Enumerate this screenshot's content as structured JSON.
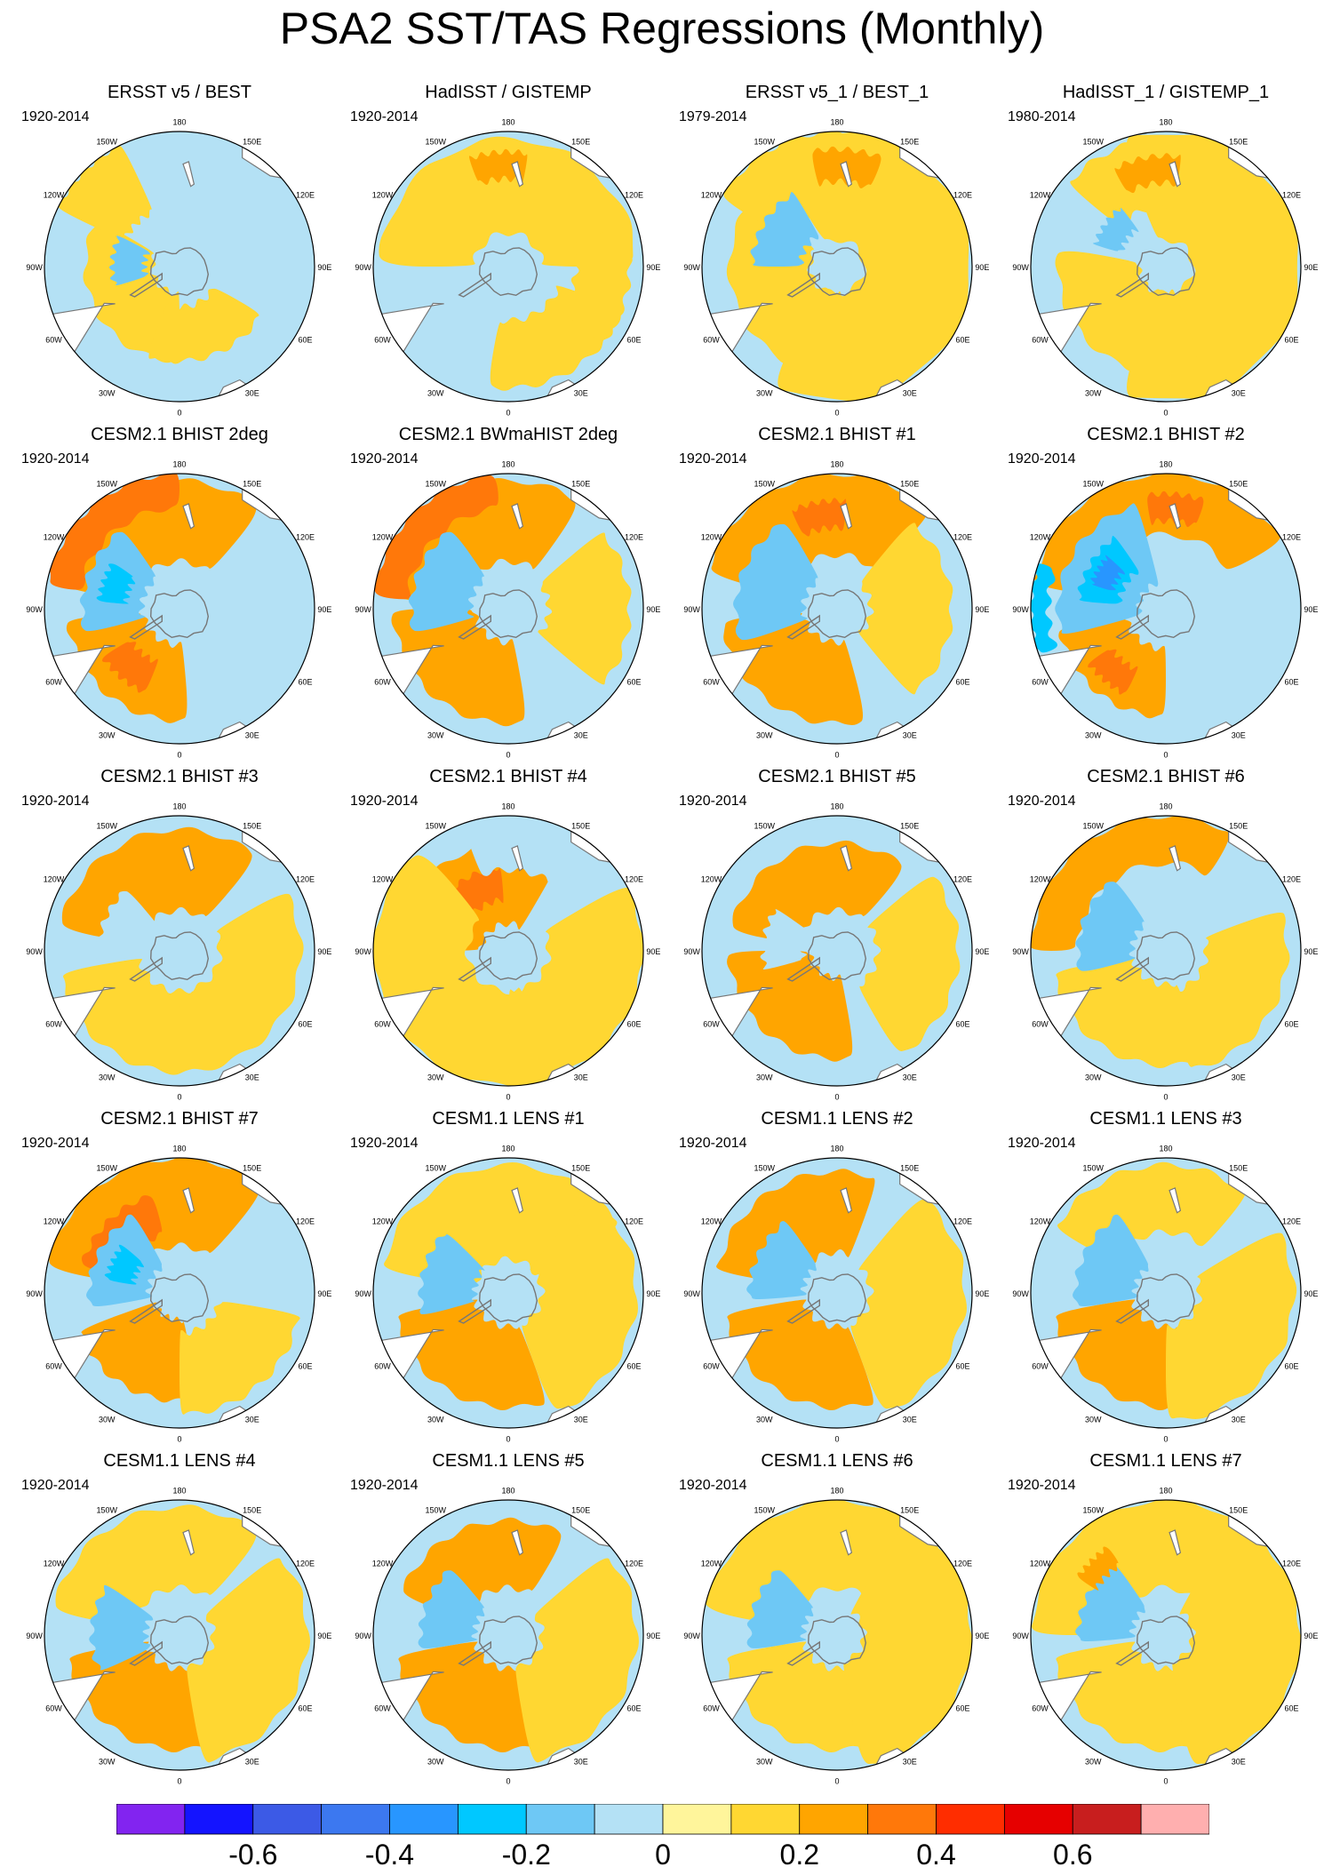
{
  "chart_data": {
    "type": "polar-contour-map-grid",
    "title": "PSA2 SST/TAS Regressions (Monthly)",
    "projection": "south-polar-stereographic",
    "lon_labels": [
      "0",
      "30E",
      "60E",
      "90E",
      "120E",
      "150E",
      "180",
      "150W",
      "120W",
      "90W",
      "60W",
      "30W"
    ],
    "panels": [
      {
        "title": "ERSST v5 / BEST",
        "period": "1920-2014",
        "blobs": [
          {
            "lon": 300,
            "r": 0.45,
            "w": 60,
            "d": 0.25,
            "level": 0.1
          },
          {
            "lon": 20,
            "r": 0.5,
            "w": 40,
            "d": 0.2,
            "level": 0.1
          },
          {
            "lon": 225,
            "r": 0.75,
            "w": 20,
            "d": 0.3,
            "level": 0.1
          },
          {
            "lon": 265,
            "r": 0.38,
            "w": 22,
            "d": 0.12,
            "level": -0.2
          }
        ]
      },
      {
        "title": "HadISST / GISTEMP",
        "period": "1920-2014",
        "blobs": [
          {
            "lon": 180,
            "r": 0.6,
            "w": 90,
            "d": 0.35,
            "level": 0.1
          },
          {
            "lon": 30,
            "r": 0.65,
            "w": 40,
            "d": 0.25,
            "level": 0.1
          },
          {
            "lon": 80,
            "r": 0.7,
            "w": 30,
            "d": 0.2,
            "level": 0.1
          },
          {
            "lon": 185,
            "r": 0.75,
            "w": 15,
            "d": 0.1,
            "level": 0.2
          }
        ]
      },
      {
        "title": "ERSST v5_1 / BEST_1",
        "period": "1979-2014",
        "blobs": [
          {
            "lon": 90,
            "r": 0.6,
            "w": 120,
            "d": 0.4,
            "level": 0.1
          },
          {
            "lon": 300,
            "r": 0.5,
            "w": 70,
            "d": 0.3,
            "level": 0.1
          },
          {
            "lon": 200,
            "r": 0.7,
            "w": 40,
            "d": 0.3,
            "level": 0.1
          },
          {
            "lon": 240,
            "r": 0.45,
            "w": 30,
            "d": 0.18,
            "level": -0.2
          },
          {
            "lon": 175,
            "r": 0.75,
            "w": 18,
            "d": 0.12,
            "level": 0.2
          }
        ]
      },
      {
        "title": "HadISST_1 / GISTEMP_1",
        "period": "1980-2014",
        "blobs": [
          {
            "lon": 90,
            "r": 0.6,
            "w": 110,
            "d": 0.4,
            "level": 0.1
          },
          {
            "lon": 320,
            "r": 0.5,
            "w": 60,
            "d": 0.3,
            "level": 0.1
          },
          {
            "lon": 190,
            "r": 0.7,
            "w": 40,
            "d": 0.25,
            "level": 0.1
          },
          {
            "lon": 190,
            "r": 0.72,
            "w": 18,
            "d": 0.1,
            "level": 0.2
          },
          {
            "lon": 235,
            "r": 0.45,
            "w": 18,
            "d": 0.1,
            "level": -0.2
          }
        ]
      },
      {
        "title": "CESM2.1 BHIST 2deg",
        "period": "1920-2014",
        "blobs": [
          {
            "lon": 320,
            "r": 0.55,
            "w": 45,
            "d": 0.28,
            "level": 0.2
          },
          {
            "lon": 320,
            "r": 0.55,
            "w": 18,
            "d": 0.12,
            "level": 0.3
          },
          {
            "lon": 200,
            "r": 0.65,
            "w": 60,
            "d": 0.3,
            "level": 0.2
          },
          {
            "lon": 220,
            "r": 0.9,
            "w": 40,
            "d": 0.15,
            "level": 0.3
          },
          {
            "lon": 250,
            "r": 0.5,
            "w": 35,
            "d": 0.22,
            "level": -0.2
          },
          {
            "lon": 250,
            "r": 0.5,
            "w": 15,
            "d": 0.1,
            "level": -0.3
          }
        ]
      },
      {
        "title": "CESM2.1 BWmaHIST 2deg",
        "period": "1920-2014",
        "blobs": [
          {
            "lon": 320,
            "r": 0.55,
            "w": 50,
            "d": 0.3,
            "level": 0.2
          },
          {
            "lon": 205,
            "r": 0.65,
            "w": 60,
            "d": 0.3,
            "level": 0.2
          },
          {
            "lon": 225,
            "r": 0.9,
            "w": 40,
            "d": 0.15,
            "level": 0.3
          },
          {
            "lon": 250,
            "r": 0.5,
            "w": 35,
            "d": 0.22,
            "level": -0.2
          },
          {
            "lon": 90,
            "r": 0.6,
            "w": 40,
            "d": 0.3,
            "level": 0.1
          }
        ]
      },
      {
        "title": "CESM2.1 BHIST #1",
        "period": "1920-2014",
        "blobs": [
          {
            "lon": 325,
            "r": 0.55,
            "w": 50,
            "d": 0.3,
            "level": 0.2
          },
          {
            "lon": 195,
            "r": 0.7,
            "w": 60,
            "d": 0.3,
            "level": 0.2
          },
          {
            "lon": 190,
            "r": 0.7,
            "w": 15,
            "d": 0.1,
            "level": 0.3
          },
          {
            "lon": 250,
            "r": 0.5,
            "w": 40,
            "d": 0.25,
            "level": -0.2
          },
          {
            "lon": 90,
            "r": 0.55,
            "w": 50,
            "d": 0.3,
            "level": 0.1
          }
        ]
      },
      {
        "title": "CESM2.1 BHIST #2",
        "period": "1920-2014",
        "blobs": [
          {
            "lon": 320,
            "r": 0.55,
            "w": 40,
            "d": 0.25,
            "level": 0.2
          },
          {
            "lon": 320,
            "r": 0.6,
            "w": 15,
            "d": 0.1,
            "level": 0.3
          },
          {
            "lon": 190,
            "r": 0.8,
            "w": 70,
            "d": 0.25,
            "level": 0.2
          },
          {
            "lon": 175,
            "r": 0.75,
            "w": 15,
            "d": 0.1,
            "level": 0.3
          },
          {
            "lon": 240,
            "r": 0.5,
            "w": 45,
            "d": 0.3,
            "level": -0.2
          },
          {
            "lon": 240,
            "r": 0.5,
            "w": 25,
            "d": 0.15,
            "level": -0.3
          },
          {
            "lon": 240,
            "r": 0.5,
            "w": 12,
            "d": 0.08,
            "level": -0.4
          },
          {
            "lon": 270,
            "r": 0.95,
            "w": 20,
            "d": 0.08,
            "level": -0.3
          }
        ]
      },
      {
        "title": "CESM2.1 BHIST #3",
        "period": "1920-2014",
        "blobs": [
          {
            "lon": 330,
            "r": 0.6,
            "w": 50,
            "d": 0.3,
            "level": 0.1
          },
          {
            "lon": 200,
            "r": 0.6,
            "w": 60,
            "d": 0.3,
            "level": 0.2
          },
          {
            "lon": 60,
            "r": 0.6,
            "w": 60,
            "d": 0.3,
            "level": 0.1
          },
          {
            "lon": 250,
            "r": 0.4,
            "w": 30,
            "d": 0.2,
            "level": -0.1
          }
        ]
      },
      {
        "title": "CESM2.1 BHIST #4",
        "period": "1920-2014",
        "blobs": [
          {
            "lon": 210,
            "r": 0.5,
            "w": 60,
            "d": 0.3,
            "level": 0.2
          },
          {
            "lon": 210,
            "r": 0.5,
            "w": 25,
            "d": 0.12,
            "level": 0.3
          },
          {
            "lon": 300,
            "r": 0.7,
            "w": 80,
            "d": 0.4,
            "level": 0.1
          },
          {
            "lon": 60,
            "r": 0.7,
            "w": 60,
            "d": 0.4,
            "level": 0.1
          },
          {
            "lon": 170,
            "r": 0.8,
            "w": 30,
            "d": 0.2,
            "level": -0.1
          }
        ]
      },
      {
        "title": "CESM2.1 BHIST #5",
        "period": "1920-2014",
        "blobs": [
          {
            "lon": 320,
            "r": 0.5,
            "w": 50,
            "d": 0.3,
            "level": 0.2
          },
          {
            "lon": 200,
            "r": 0.55,
            "w": 60,
            "d": 0.25,
            "level": 0.2
          },
          {
            "lon": 80,
            "r": 0.6,
            "w": 50,
            "d": 0.3,
            "level": 0.1
          },
          {
            "lon": 260,
            "r": 0.4,
            "w": 25,
            "d": 0.15,
            "level": -0.1
          }
        ]
      },
      {
        "title": "CESM2.1 BHIST #6",
        "period": "1920-2014",
        "blobs": [
          {
            "lon": 330,
            "r": 0.55,
            "w": 50,
            "d": 0.3,
            "level": 0.1
          },
          {
            "lon": 210,
            "r": 0.85,
            "w": 60,
            "d": 0.2,
            "level": 0.2
          },
          {
            "lon": 60,
            "r": 0.6,
            "w": 50,
            "d": 0.3,
            "level": 0.1
          },
          {
            "lon": 250,
            "r": 0.45,
            "w": 35,
            "d": 0.2,
            "level": -0.2
          }
        ]
      },
      {
        "title": "CESM2.1 BHIST #7",
        "period": "1920-2014",
        "blobs": [
          {
            "lon": 330,
            "r": 0.5,
            "w": 40,
            "d": 0.3,
            "level": 0.2
          },
          {
            "lon": 200,
            "r": 0.7,
            "w": 60,
            "d": 0.35,
            "level": 0.2
          },
          {
            "lon": 225,
            "r": 0.6,
            "w": 30,
            "d": 0.15,
            "level": 0.3
          },
          {
            "lon": 245,
            "r": 0.45,
            "w": 35,
            "d": 0.22,
            "level": -0.2
          },
          {
            "lon": 245,
            "r": 0.45,
            "w": 15,
            "d": 0.1,
            "level": -0.3
          },
          {
            "lon": 40,
            "r": 0.6,
            "w": 40,
            "d": 0.3,
            "level": 0.1
          }
        ]
      },
      {
        "title": "CESM1.1 LENS #1",
        "period": "1920-2014",
        "blobs": [
          {
            "lon": 330,
            "r": 0.55,
            "w": 50,
            "d": 0.3,
            "level": 0.2
          },
          {
            "lon": 190,
            "r": 0.6,
            "w": 70,
            "d": 0.35,
            "level": 0.1
          },
          {
            "lon": 80,
            "r": 0.6,
            "w": 60,
            "d": 0.35,
            "level": 0.1
          },
          {
            "lon": 255,
            "r": 0.45,
            "w": 30,
            "d": 0.2,
            "level": -0.2
          }
        ]
      },
      {
        "title": "CESM1.1 LENS #2",
        "period": "1920-2014",
        "blobs": [
          {
            "lon": 330,
            "r": 0.55,
            "w": 50,
            "d": 0.3,
            "level": 0.2
          },
          {
            "lon": 210,
            "r": 0.6,
            "w": 50,
            "d": 0.3,
            "level": 0.2
          },
          {
            "lon": 80,
            "r": 0.6,
            "w": 60,
            "d": 0.35,
            "level": 0.1
          },
          {
            "lon": 245,
            "r": 0.45,
            "w": 30,
            "d": 0.2,
            "level": -0.2
          }
        ]
      },
      {
        "title": "CESM1.1 LENS #3",
        "period": "1920-2014",
        "blobs": [
          {
            "lon": 330,
            "r": 0.55,
            "w": 50,
            "d": 0.3,
            "level": 0.2
          },
          {
            "lon": 190,
            "r": 0.7,
            "w": 50,
            "d": 0.25,
            "level": 0.1
          },
          {
            "lon": 60,
            "r": 0.6,
            "w": 60,
            "d": 0.35,
            "level": 0.1
          },
          {
            "lon": 245,
            "r": 0.45,
            "w": 35,
            "d": 0.22,
            "level": -0.2
          }
        ]
      },
      {
        "title": "CESM1.1 LENS #4",
        "period": "1920-2014",
        "blobs": [
          {
            "lon": 330,
            "r": 0.55,
            "w": 50,
            "d": 0.3,
            "level": 0.2
          },
          {
            "lon": 200,
            "r": 0.65,
            "w": 60,
            "d": 0.3,
            "level": 0.1
          },
          {
            "lon": 70,
            "r": 0.6,
            "w": 60,
            "d": 0.35,
            "level": 0.1
          },
          {
            "lon": 265,
            "r": 0.45,
            "w": 30,
            "d": 0.2,
            "level": -0.2
          }
        ]
      },
      {
        "title": "CESM1.1 LENS #5",
        "period": "1920-2014",
        "blobs": [
          {
            "lon": 330,
            "r": 0.55,
            "w": 50,
            "d": 0.3,
            "level": 0.2
          },
          {
            "lon": 200,
            "r": 0.6,
            "w": 50,
            "d": 0.25,
            "level": 0.2
          },
          {
            "lon": 70,
            "r": 0.6,
            "w": 60,
            "d": 0.35,
            "level": 0.1
          },
          {
            "lon": 250,
            "r": 0.45,
            "w": 30,
            "d": 0.2,
            "level": -0.2
          }
        ]
      },
      {
        "title": "CESM1.1 LENS #6",
        "period": "1920-2014",
        "blobs": [
          {
            "lon": 330,
            "r": 0.55,
            "w": 50,
            "d": 0.3,
            "level": 0.1
          },
          {
            "lon": 180,
            "r": 0.7,
            "w": 80,
            "d": 0.35,
            "level": 0.1
          },
          {
            "lon": 80,
            "r": 0.6,
            "w": 70,
            "d": 0.4,
            "level": 0.1
          },
          {
            "lon": 250,
            "r": 0.45,
            "w": 30,
            "d": 0.2,
            "level": -0.2
          }
        ]
      },
      {
        "title": "CESM1.1 LENS #7",
        "period": "1920-2014",
        "blobs": [
          {
            "lon": 330,
            "r": 0.55,
            "w": 50,
            "d": 0.3,
            "level": 0.1
          },
          {
            "lon": 190,
            "r": 0.7,
            "w": 80,
            "d": 0.35,
            "level": 0.1
          },
          {
            "lon": 80,
            "r": 0.6,
            "w": 70,
            "d": 0.4,
            "level": 0.1
          },
          {
            "lon": 245,
            "r": 0.45,
            "w": 30,
            "d": 0.2,
            "level": -0.2
          },
          {
            "lon": 225,
            "r": 0.7,
            "w": 12,
            "d": 0.08,
            "level": 0.2
          }
        ]
      }
    ],
    "colorbar": {
      "levels": [
        -0.7,
        -0.6,
        -0.5,
        -0.4,
        -0.3,
        -0.2,
        -0.1,
        0,
        0.1,
        0.2,
        0.3,
        0.4,
        0.5,
        0.6,
        0.7
      ],
      "colors": [
        "#8224f0",
        "#1414ff",
        "#3c5ae6",
        "#3c78f0",
        "#2896ff",
        "#00c8ff",
        "#6ec8f5",
        "#b4e1f5",
        "#fff59b",
        "#ffd732",
        "#ffa500",
        "#ff780a",
        "#ff2d00",
        "#e60000",
        "#c81e1e",
        "#ffafaf"
      ],
      "tick_values": [
        -0.6,
        -0.4,
        -0.2,
        0,
        0.2,
        0.4,
        0.6
      ],
      "tick_labels": [
        "-0.6",
        "-0.4",
        "-0.2",
        "0",
        "0.2",
        "0.4",
        "0.6"
      ]
    },
    "palette": {
      "land": "#ffffff",
      "coast": "#777777",
      "neutral_negative": "#b4e1f5",
      "neutral_positive": "#fff59b"
    }
  }
}
